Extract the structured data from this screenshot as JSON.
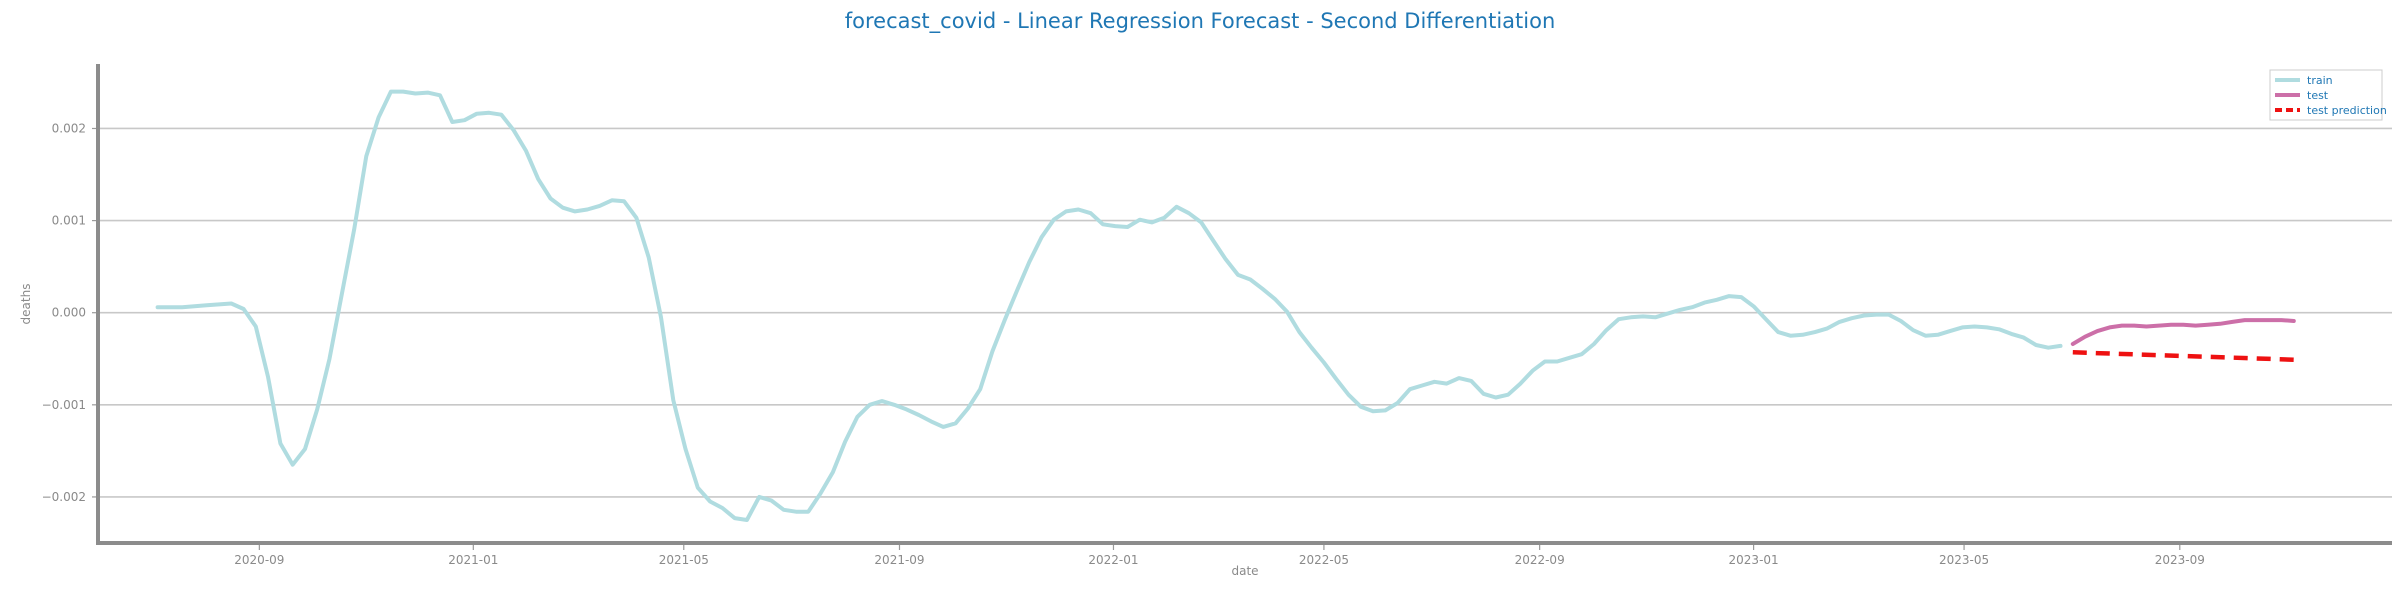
{
  "chart_data": {
    "type": "line",
    "title": "forecast_covid - Linear Regression Forecast - Second Differentiation",
    "xlabel": "date",
    "ylabel": "deaths",
    "xlim": [
      "2020-06-01",
      "2023-12-31"
    ],
    "ylim": [
      -0.0025,
      0.0027
    ],
    "x_ticks": [
      "2020-09-01",
      "2021-01-01",
      "2021-05-01",
      "2021-09-01",
      "2022-01-01",
      "2022-05-01",
      "2022-09-01",
      "2023-01-01",
      "2023-05-01",
      "2023-09-01"
    ],
    "x_tick_labels": [
      "2020-09",
      "2021-01",
      "2021-05",
      "2021-09",
      "2022-01",
      "2022-05",
      "2022-09",
      "2023-01",
      "2023-05",
      "2023-09"
    ],
    "y_ticks": [
      0.002,
      0.001,
      0.0,
      -0.001,
      -0.002
    ],
    "y_tick_labels": [
      "0.002",
      "0.001",
      "0.000",
      "−0.001",
      "−0.002"
    ],
    "grid": "horizontal",
    "legend_position": "top-right",
    "series": [
      {
        "name": "train",
        "color": "#b0dce0",
        "style": "solid",
        "x": [
          "2020-07-05",
          "2020-07-12",
          "2020-07-19",
          "2020-07-26",
          "2020-08-02",
          "2020-08-09",
          "2020-08-16",
          "2020-08-23",
          "2020-08-30",
          "2020-09-06",
          "2020-09-13",
          "2020-09-20",
          "2020-09-27",
          "2020-10-04",
          "2020-10-11",
          "2020-10-18",
          "2020-10-25",
          "2020-11-01",
          "2020-11-08",
          "2020-11-15",
          "2020-11-22",
          "2020-11-29",
          "2020-12-06",
          "2020-12-13",
          "2020-12-20",
          "2020-12-27",
          "2021-01-03",
          "2021-01-10",
          "2021-01-17",
          "2021-01-24",
          "2021-01-31",
          "2021-02-07",
          "2021-02-14",
          "2021-02-21",
          "2021-02-28",
          "2021-03-07",
          "2021-03-14",
          "2021-03-21",
          "2021-03-28",
          "2021-04-04",
          "2021-04-11",
          "2021-04-18",
          "2021-04-25",
          "2021-05-02",
          "2021-05-09",
          "2021-05-16",
          "2021-05-23",
          "2021-05-30",
          "2021-06-06",
          "2021-06-13",
          "2021-06-20",
          "2021-06-27",
          "2021-07-04",
          "2021-07-11",
          "2021-07-18",
          "2021-07-25",
          "2021-08-01",
          "2021-08-08",
          "2021-08-15",
          "2021-08-22",
          "2021-08-29",
          "2021-09-05",
          "2021-09-12",
          "2021-09-19",
          "2021-09-26",
          "2021-10-03",
          "2021-10-10",
          "2021-10-17",
          "2021-10-24",
          "2021-10-31",
          "2021-11-07",
          "2021-11-14",
          "2021-11-21",
          "2021-11-28",
          "2021-12-05",
          "2021-12-12",
          "2021-12-19",
          "2021-12-26",
          "2022-01-02",
          "2022-01-09",
          "2022-01-16",
          "2022-01-23",
          "2022-01-30",
          "2022-02-06",
          "2022-02-13",
          "2022-02-20",
          "2022-02-27",
          "2022-03-06",
          "2022-03-13",
          "2022-03-20",
          "2022-03-27",
          "2022-04-03",
          "2022-04-10",
          "2022-04-17",
          "2022-04-24",
          "2022-05-01",
          "2022-05-08",
          "2022-05-15",
          "2022-05-22",
          "2022-05-29",
          "2022-06-05",
          "2022-06-12",
          "2022-06-19",
          "2022-06-26",
          "2022-07-03",
          "2022-07-10",
          "2022-07-17",
          "2022-07-24",
          "2022-07-31",
          "2022-08-07",
          "2022-08-14",
          "2022-08-21",
          "2022-08-28",
          "2022-09-04",
          "2022-09-11",
          "2022-09-18",
          "2022-09-25",
          "2022-10-02",
          "2022-10-09",
          "2022-10-16",
          "2022-10-23",
          "2022-10-30",
          "2022-11-06",
          "2022-11-13",
          "2022-11-20",
          "2022-11-27",
          "2022-12-04",
          "2022-12-11",
          "2022-12-18",
          "2022-12-25",
          "2023-01-01",
          "2023-01-08",
          "2023-01-15",
          "2023-01-22",
          "2023-01-29",
          "2023-02-05",
          "2023-02-12",
          "2023-02-19",
          "2023-02-26",
          "2023-03-05",
          "2023-03-12",
          "2023-03-19",
          "2023-03-26",
          "2023-04-02",
          "2023-04-09",
          "2023-04-16",
          "2023-04-23",
          "2023-04-30",
          "2023-05-07",
          "2023-05-14",
          "2023-05-21",
          "2023-05-28",
          "2023-06-04",
          "2023-06-11",
          "2023-06-18",
          "2023-06-25"
        ],
        "values": [
          6e-05,
          6e-05,
          6e-05,
          7e-05,
          8e-05,
          9e-05,
          0.0001,
          4e-05,
          -0.00015,
          -0.0007,
          -0.00142,
          -0.00165,
          -0.00148,
          -0.00105,
          -0.0005,
          0.0002,
          0.0009,
          0.0017,
          0.00212,
          0.0024,
          0.0024,
          0.00238,
          0.00239,
          0.00236,
          0.00207,
          0.00209,
          0.00216,
          0.00217,
          0.00215,
          0.00198,
          0.00176,
          0.00145,
          0.00124,
          0.00114,
          0.0011,
          0.00112,
          0.00116,
          0.00122,
          0.00121,
          0.00103,
          0.0006,
          -5e-05,
          -0.00095,
          -0.00148,
          -0.0019,
          -0.00205,
          -0.00212,
          -0.00223,
          -0.00225,
          -0.002,
          -0.00204,
          -0.00214,
          -0.00216,
          -0.00216,
          -0.00196,
          -0.00173,
          -0.0014,
          -0.00113,
          -0.001,
          -0.00096,
          -0.001,
          -0.00105,
          -0.00111,
          -0.00118,
          -0.00124,
          -0.0012,
          -0.00104,
          -0.00083,
          -0.00042,
          -8e-05,
          0.00024,
          0.00055,
          0.00082,
          0.00101,
          0.0011,
          0.00112,
          0.00108,
          0.00096,
          0.00094,
          0.00093,
          0.00101,
          0.00098,
          0.00103,
          0.00115,
          0.00108,
          0.00098,
          0.00078,
          0.00058,
          0.00041,
          0.00036,
          0.00026,
          0.00015,
          1e-05,
          -0.00021,
          -0.00038,
          -0.00054,
          -0.00072,
          -0.00089,
          -0.00102,
          -0.00107,
          -0.00106,
          -0.00098,
          -0.00083,
          -0.00079,
          -0.00075,
          -0.00077,
          -0.00071,
          -0.00074,
          -0.00088,
          -0.00092,
          -0.00089,
          -0.00077,
          -0.00063,
          -0.00053,
          -0.00053,
          -0.00049,
          -0.00045,
          -0.00034,
          -0.00019,
          -7e-05,
          -5e-05,
          -4e-05,
          -5e-05,
          -1e-05,
          3e-05,
          6e-05,
          0.00011,
          0.00014,
          0.00018,
          0.00017,
          7e-05,
          -7e-05,
          -0.00021,
          -0.00025,
          -0.00024,
          -0.00021,
          -0.00017,
          -0.0001,
          -6e-05,
          -3e-05,
          -2e-05,
          -2e-05,
          -9e-05,
          -0.00019,
          -0.00025,
          -0.00024,
          -0.0002,
          -0.00016,
          -0.00015,
          -0.00016,
          -0.00018,
          -0.00023,
          -0.00027,
          -0.00035,
          -0.00038,
          -0.00036
        ]
      },
      {
        "name": "test",
        "color": "#cc6fa8",
        "style": "solid",
        "x": [
          "2023-07-02",
          "2023-07-09",
          "2023-07-16",
          "2023-07-23",
          "2023-07-30",
          "2023-08-06",
          "2023-08-13",
          "2023-08-20",
          "2023-08-27",
          "2023-09-03",
          "2023-09-10",
          "2023-09-17",
          "2023-09-24",
          "2023-10-01",
          "2023-10-08",
          "2023-10-15",
          "2023-10-22",
          "2023-10-29",
          "2023-11-05"
        ],
        "values": [
          -0.00034,
          -0.00026,
          -0.0002,
          -0.00016,
          -0.00014,
          -0.00014,
          -0.00015,
          -0.00014,
          -0.00013,
          -0.00013,
          -0.00014,
          -0.00013,
          -0.00012,
          -0.0001,
          -8e-05,
          -8e-05,
          -8e-05,
          -8e-05,
          -9e-05
        ]
      },
      {
        "name": "test prediction",
        "color": "#ee1111",
        "style": "dashed",
        "x": [
          "2023-07-02",
          "2023-11-05"
        ],
        "values": [
          -0.00043,
          -0.00051
        ]
      }
    ]
  }
}
